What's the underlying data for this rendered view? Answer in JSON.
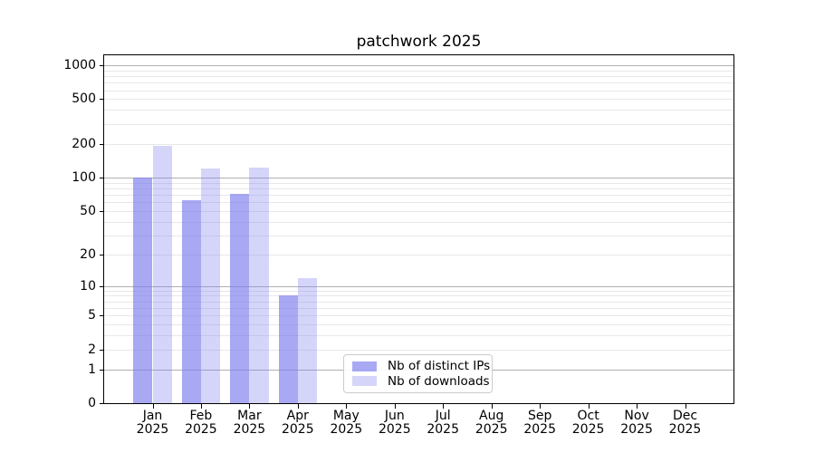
{
  "chart_data": {
    "type": "bar",
    "title": "patchwork 2025",
    "categories": [
      "Jan",
      "Feb",
      "Mar",
      "Apr",
      "May",
      "Jun",
      "Jul",
      "Aug",
      "Sep",
      "Oct",
      "Nov",
      "Dec"
    ],
    "year_label": "2025",
    "series": [
      {
        "name": "Nb of distinct IPs",
        "color": "rgba(123,123,237,0.66)",
        "values": [
          100,
          62,
          71,
          8,
          null,
          null,
          null,
          null,
          null,
          null,
          null,
          null
        ]
      },
      {
        "name": "Nb of downloads",
        "color": "rgba(123,123,237,0.32)",
        "values": [
          192,
          120,
          122,
          12,
          null,
          null,
          null,
          null,
          null,
          null,
          null,
          null
        ]
      }
    ],
    "yscale": "log1p",
    "ylim": [
      0,
      1250
    ],
    "yticks": [
      0,
      1,
      2,
      5,
      10,
      20,
      50,
      100,
      200,
      500,
      1000
    ],
    "grid": {
      "major_ticks": [
        1,
        10,
        100,
        1000
      ],
      "major_color": "#b0b0b0",
      "minor_color": "#e8e8e8",
      "minor_on": true
    },
    "legend": {
      "position": "lower center",
      "entries": [
        "Nb of distinct IPs",
        "Nb of downloads"
      ]
    },
    "axis_color": "#000000",
    "background_color": "#ffffff"
  }
}
